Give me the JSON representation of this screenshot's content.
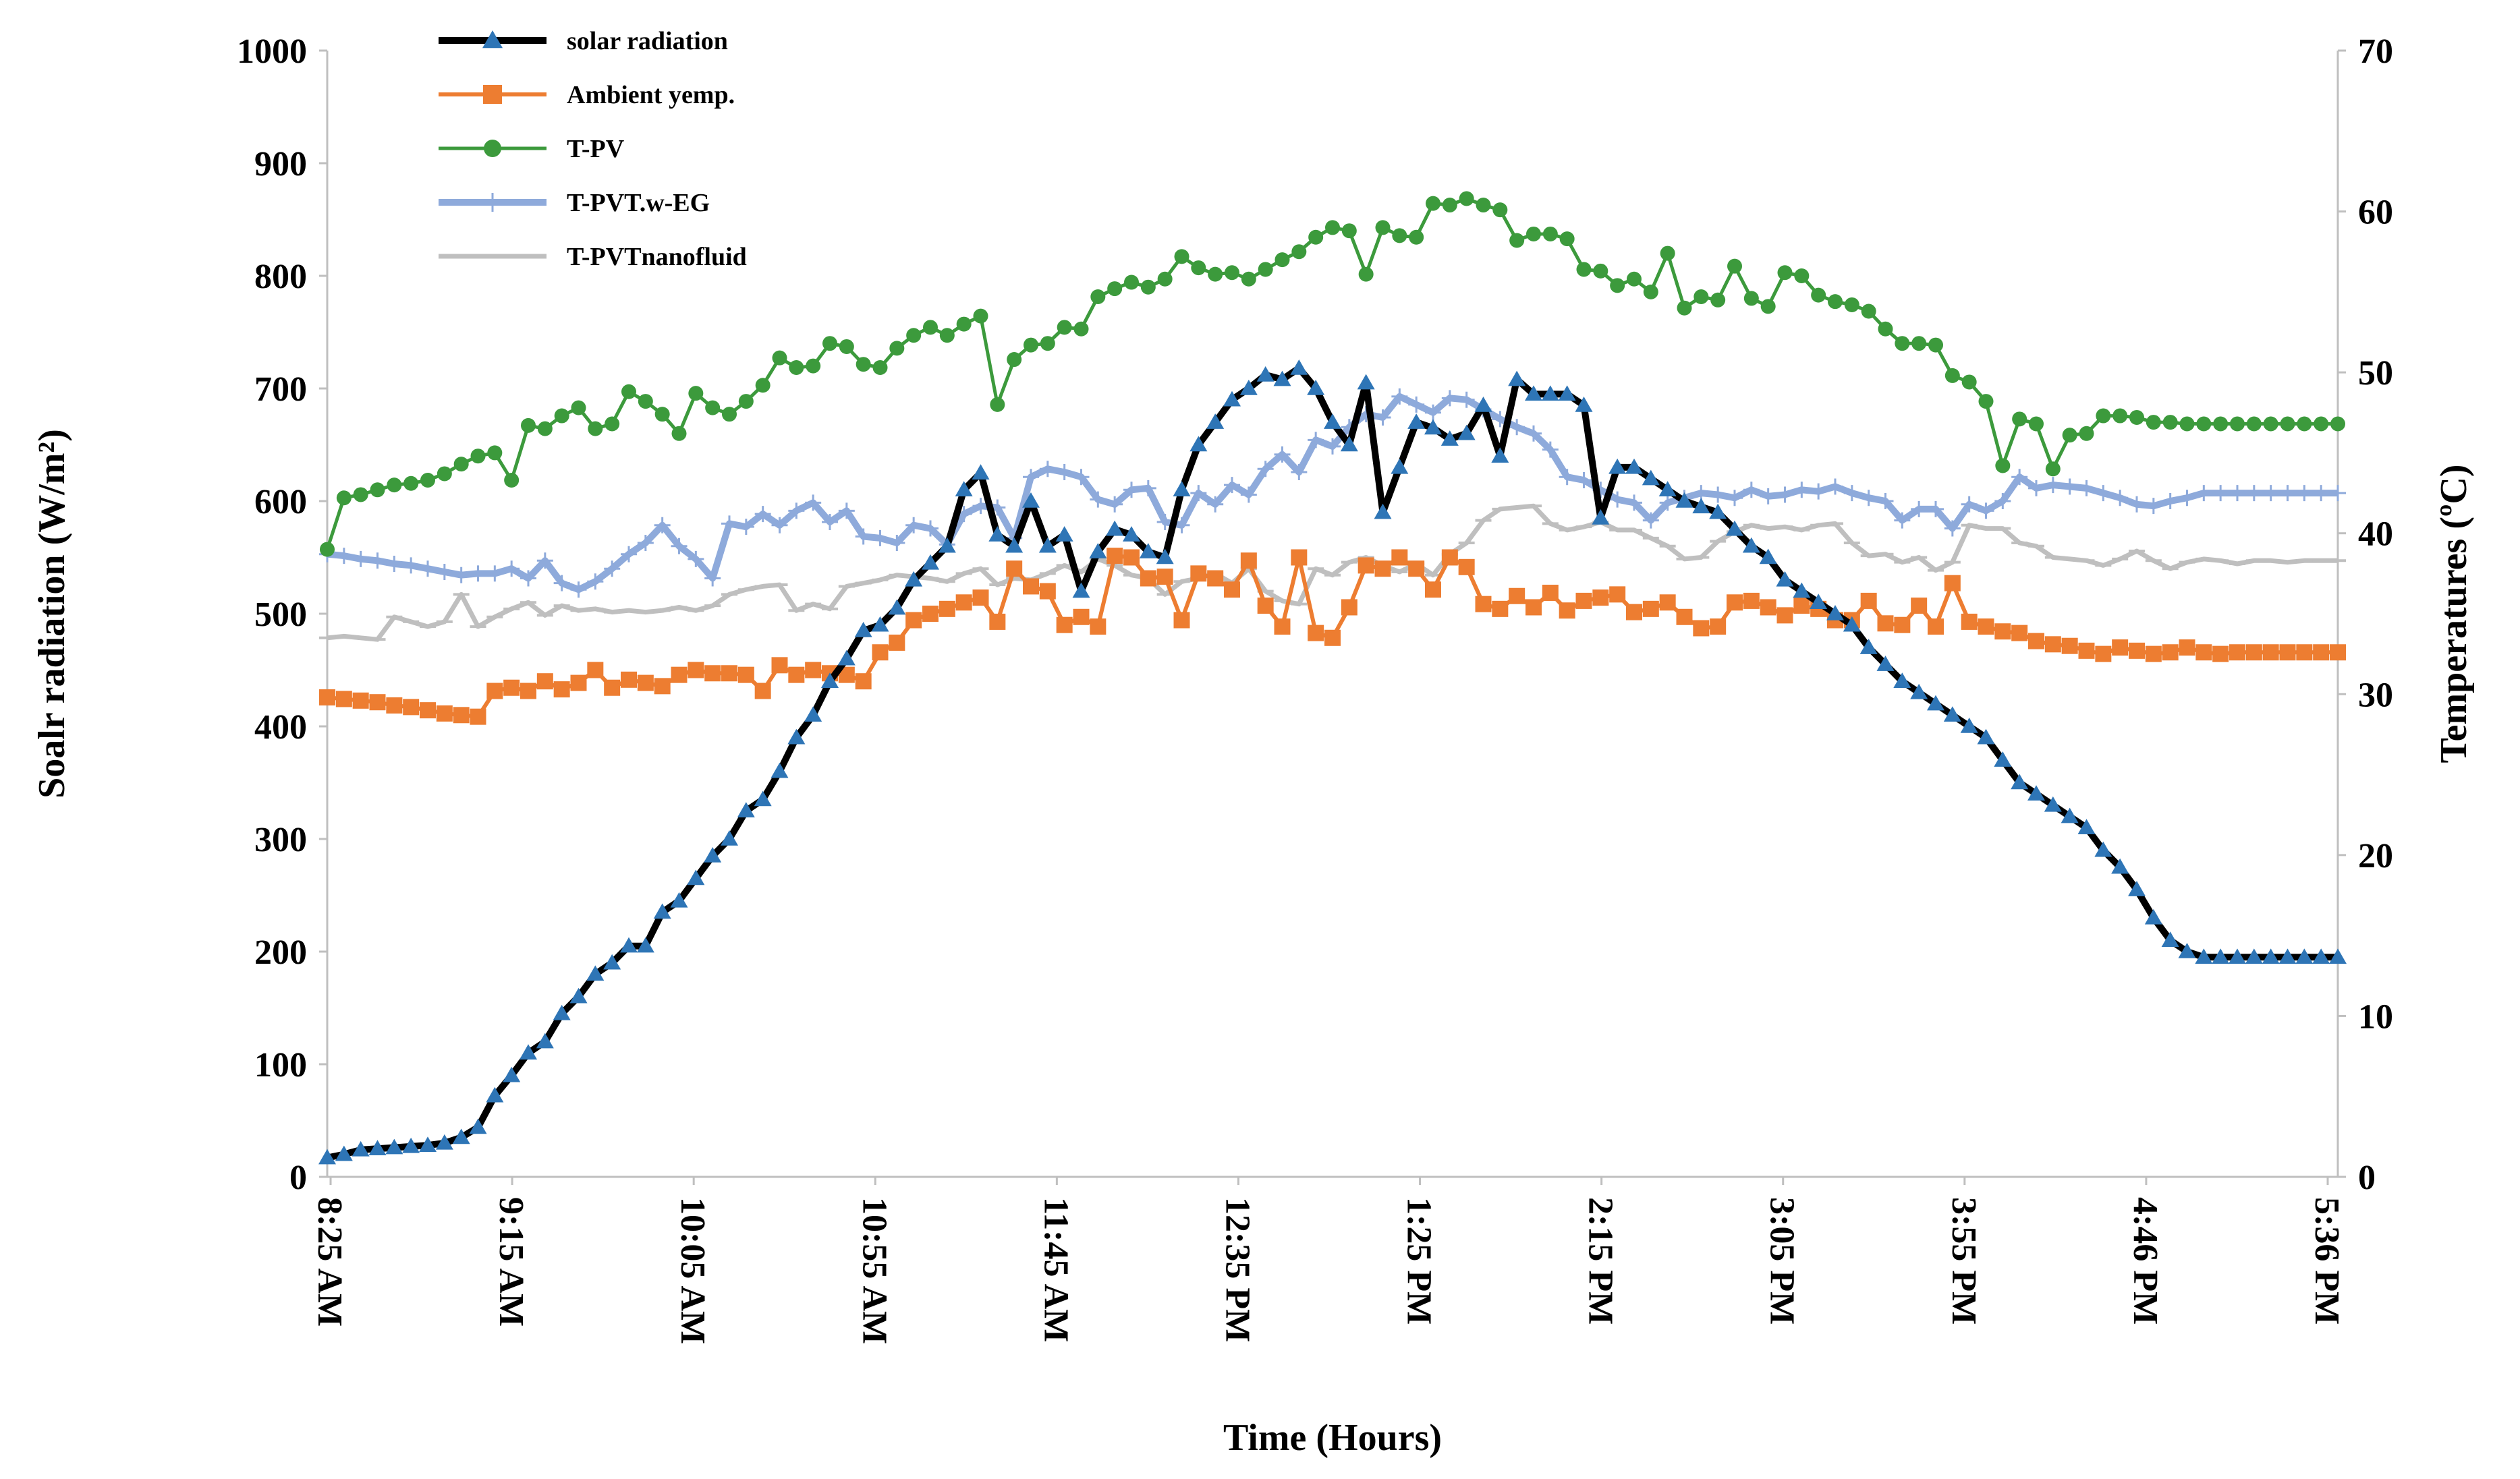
{
  "chart_data": {
    "type": "line",
    "title": "",
    "xlabel": "Time (Hours)",
    "ylabel": "Soalr radiation (W/m²)",
    "y2label": "Temperatures (ºC)",
    "ylim": [
      0,
      1000
    ],
    "y2lim": [
      0,
      70
    ],
    "y_ticks": [
      "0",
      "100",
      "200",
      "300",
      "400",
      "500",
      "600",
      "700",
      "800",
      "900",
      "1000"
    ],
    "y2_ticks": [
      "0",
      "10",
      "20",
      "30",
      "40",
      "50",
      "60",
      "70"
    ],
    "x_tick_labels": [
      "8:25 AM",
      "9:15 AM",
      "10:05 AM",
      "10:55 AM",
      "11:45 AM",
      "12:35 PM",
      "1:25 PM",
      "2:15 PM",
      "3:05 PM",
      "3:55 PM",
      "4:46 PM",
      "5:36 PM"
    ],
    "points_per_series": 121,
    "legend_position": "top-left",
    "series": [
      {
        "name": "solar radiation",
        "axis": "left",
        "color": "#000000",
        "marker": "triangle",
        "marker_color": "#2e75b6",
        "values": [
          17,
          20,
          24,
          25,
          26,
          27,
          28,
          30,
          35,
          44,
          72,
          90,
          110,
          120,
          145,
          160,
          180,
          190,
          205,
          205,
          235,
          245,
          265,
          285,
          300,
          325,
          335,
          360,
          390,
          410,
          440,
          460,
          485,
          490,
          505,
          530,
          545,
          560,
          610,
          625,
          570,
          560,
          600,
          560,
          570,
          520,
          555,
          575,
          570,
          555,
          550,
          610,
          650,
          670,
          690,
          700,
          712,
          708,
          718,
          700,
          670,
          650,
          705,
          590,
          630,
          670,
          665,
          655,
          660,
          685,
          640,
          708,
          695,
          695,
          695,
          685,
          585,
          630,
          630,
          620,
          610,
          600,
          595,
          590,
          575,
          560,
          550,
          530,
          520,
          510,
          500,
          490,
          470,
          455,
          440,
          430,
          420,
          410,
          400,
          390,
          370,
          350,
          340,
          330,
          320,
          310,
          290,
          275,
          255,
          230,
          210,
          200,
          195,
          195,
          195,
          195,
          195,
          195,
          195,
          195,
          195
        ]
      },
      {
        "name": "Ambient yemp.",
        "axis": "right",
        "color": "#ed7d31",
        "marker": "square",
        "marker_color": "#ed7d31",
        "values": [
          29.8,
          29.7,
          29.6,
          29.5,
          29.3,
          29.2,
          29.0,
          28.8,
          28.7,
          28.6,
          30.2,
          30.4,
          30.2,
          30.8,
          30.3,
          30.7,
          31.5,
          30.4,
          30.9,
          30.7,
          30.5,
          31.2,
          31.5,
          31.3,
          31.3,
          31.2,
          30.2,
          31.8,
          31.2,
          31.5,
          31.3,
          31.2,
          30.8,
          32.6,
          33.2,
          34.6,
          35.0,
          35.3,
          35.7,
          36.0,
          34.5,
          37.8,
          36.7,
          36.4,
          34.3,
          34.8,
          34.2,
          38.6,
          38.5,
          37.2,
          37.3,
          34.6,
          37.5,
          37.2,
          36.5,
          38.3,
          35.5,
          34.2,
          38.5,
          33.8,
          33.5,
          35.4,
          38.0,
          37.8,
          38.5,
          37.8,
          36.5,
          38.5,
          37.9,
          35.6,
          35.3,
          36.1,
          35.4,
          36.3,
          35.2,
          35.8,
          36.0,
          36.2,
          35.1,
          35.3,
          35.7,
          34.8,
          34.1,
          34.2,
          35.7,
          35.8,
          35.4,
          34.9,
          35.5,
          35.3,
          34.6,
          34.6,
          35.8,
          34.4,
          34.3,
          35.5,
          34.2,
          36.9,
          34.5,
          34.2,
          33.9,
          33.8,
          33.3,
          33.1,
          33.0,
          32.7,
          32.5,
          32.9,
          32.7,
          32.5,
          32.6,
          32.9,
          32.6,
          32.5,
          32.6,
          32.6,
          32.6,
          32.6,
          32.6,
          32.6,
          32.6
        ]
      },
      {
        "name": "T-PV",
        "axis": "right",
        "color": "#3c9a3c",
        "marker": "circle",
        "marker_color": "#3c9a3c",
        "values": [
          39.0,
          42.2,
          42.4,
          42.7,
          43.0,
          43.1,
          43.3,
          43.7,
          44.3,
          44.8,
          45.0,
          43.3,
          46.7,
          46.5,
          47.3,
          47.8,
          46.5,
          46.8,
          48.8,
          48.2,
          47.4,
          46.2,
          48.7,
          47.8,
          47.4,
          48.2,
          49.2,
          50.9,
          50.3,
          50.4,
          51.8,
          51.6,
          50.5,
          50.3,
          51.5,
          52.3,
          52.8,
          52.3,
          53.0,
          53.5,
          48.0,
          50.8,
          51.7,
          51.8,
          52.8,
          52.7,
          54.7,
          55.2,
          55.6,
          55.3,
          55.8,
          57.2,
          56.5,
          56.1,
          56.2,
          55.8,
          56.4,
          57.0,
          57.5,
          58.4,
          59.0,
          58.8,
          56.1,
          59.0,
          58.5,
          58.4,
          60.5,
          60.4,
          60.8,
          60.4,
          60.1,
          58.2,
          58.6,
          58.6,
          58.3,
          56.4,
          56.3,
          55.4,
          55.8,
          55.0,
          57.4,
          54.0,
          54.7,
          54.5,
          56.6,
          54.6,
          54.1,
          56.2,
          56.0,
          54.8,
          54.4,
          54.2,
          53.8,
          52.7,
          51.8,
          51.8,
          51.7,
          49.8,
          49.4,
          48.2,
          44.2,
          47.1,
          46.8,
          44.0,
          46.1,
          46.2,
          47.3,
          47.3,
          47.2,
          46.9,
          46.9,
          46.8,
          46.8,
          46.8,
          46.8,
          46.8,
          46.8,
          46.8,
          46.8,
          46.8,
          46.8
        ]
      },
      {
        "name": "T-PVT.w-EG",
        "axis": "right",
        "color": "#8eaadb",
        "marker": "plus",
        "marker_color": "#8eaadb",
        "values": [
          38.7,
          38.6,
          38.4,
          38.3,
          38.1,
          38.0,
          37.8,
          37.6,
          37.4,
          37.5,
          37.5,
          37.8,
          37.2,
          38.3,
          36.9,
          36.5,
          37.0,
          37.8,
          38.7,
          39.4,
          40.5,
          39.2,
          38.4,
          37.2,
          40.6,
          40.4,
          41.2,
          40.5,
          41.4,
          41.9,
          40.7,
          41.4,
          39.8,
          39.7,
          39.4,
          40.5,
          40.3,
          39.3,
          41.2,
          41.7,
          41.6,
          39.7,
          43.5,
          44.0,
          43.8,
          43.5,
          42.1,
          41.8,
          42.7,
          42.8,
          40.7,
          40.5,
          42.5,
          41.8,
          43.0,
          42.4,
          44.0,
          44.9,
          43.8,
          45.8,
          45.4,
          46.6,
          47.4,
          47.2,
          48.5,
          48.0,
          47.5,
          48.4,
          48.3,
          47.7,
          47.1,
          46.6,
          46.2,
          45.2,
          43.5,
          43.3,
          42.7,
          42.1,
          41.9,
          40.8,
          41.9,
          42.2,
          42.5,
          42.4,
          42.2,
          42.7,
          42.3,
          42.4,
          42.7,
          42.6,
          42.9,
          42.5,
          42.2,
          42.0,
          40.8,
          41.5,
          41.5,
          40.3,
          41.8,
          41.4,
          42.0,
          43.5,
          42.8,
          43.0,
          42.9,
          42.8,
          42.5,
          42.2,
          41.8,
          41.7,
          42.0,
          42.2,
          42.5,
          42.5,
          42.5,
          42.5,
          42.5,
          42.5,
          42.5,
          42.5,
          42.5
        ]
      },
      {
        "name": "T-PVTnanofluid",
        "axis": "right",
        "color": "#bfbfbf",
        "marker": "dash",
        "marker_color": "#bfbfbf",
        "values": [
          33.5,
          33.6,
          33.5,
          33.4,
          34.8,
          34.5,
          34.2,
          34.5,
          36.2,
          34.2,
          34.8,
          35.3,
          35.7,
          34.9,
          35.5,
          35.2,
          35.3,
          35.1,
          35.2,
          35.1,
          35.2,
          35.4,
          35.2,
          35.5,
          36.2,
          36.5,
          36.7,
          36.8,
          35.2,
          35.6,
          35.3,
          36.7,
          36.9,
          37.1,
          37.4,
          37.3,
          37.2,
          37.0,
          37.5,
          37.8,
          36.8,
          37.2,
          37.1,
          37.5,
          38.0,
          37.6,
          38.4,
          38.0,
          37.4,
          37.2,
          36.2,
          37.0,
          37.2,
          37.5,
          36.9,
          37.8,
          36.4,
          35.8,
          35.6,
          37.8,
          37.4,
          38.2,
          38.5,
          38.0,
          37.6,
          38.1,
          37.4,
          38.7,
          39.4,
          40.8,
          41.5,
          41.6,
          41.7,
          40.6,
          40.2,
          40.4,
          40.7,
          40.2,
          40.2,
          39.7,
          39.2,
          38.4,
          38.5,
          39.5,
          40.1,
          40.5,
          40.3,
          40.4,
          40.2,
          40.5,
          40.6,
          39.4,
          38.6,
          38.7,
          38.2,
          38.5,
          37.7,
          38.2,
          40.5,
          40.3,
          40.3,
          39.4,
          39.2,
          38.5,
          38.4,
          38.3,
          38.0,
          38.4,
          38.9,
          38.3,
          37.8,
          38.2,
          38.4,
          38.3,
          38.1,
          38.3,
          38.3,
          38.2,
          38.3,
          38.3,
          38.3
        ]
      }
    ]
  }
}
